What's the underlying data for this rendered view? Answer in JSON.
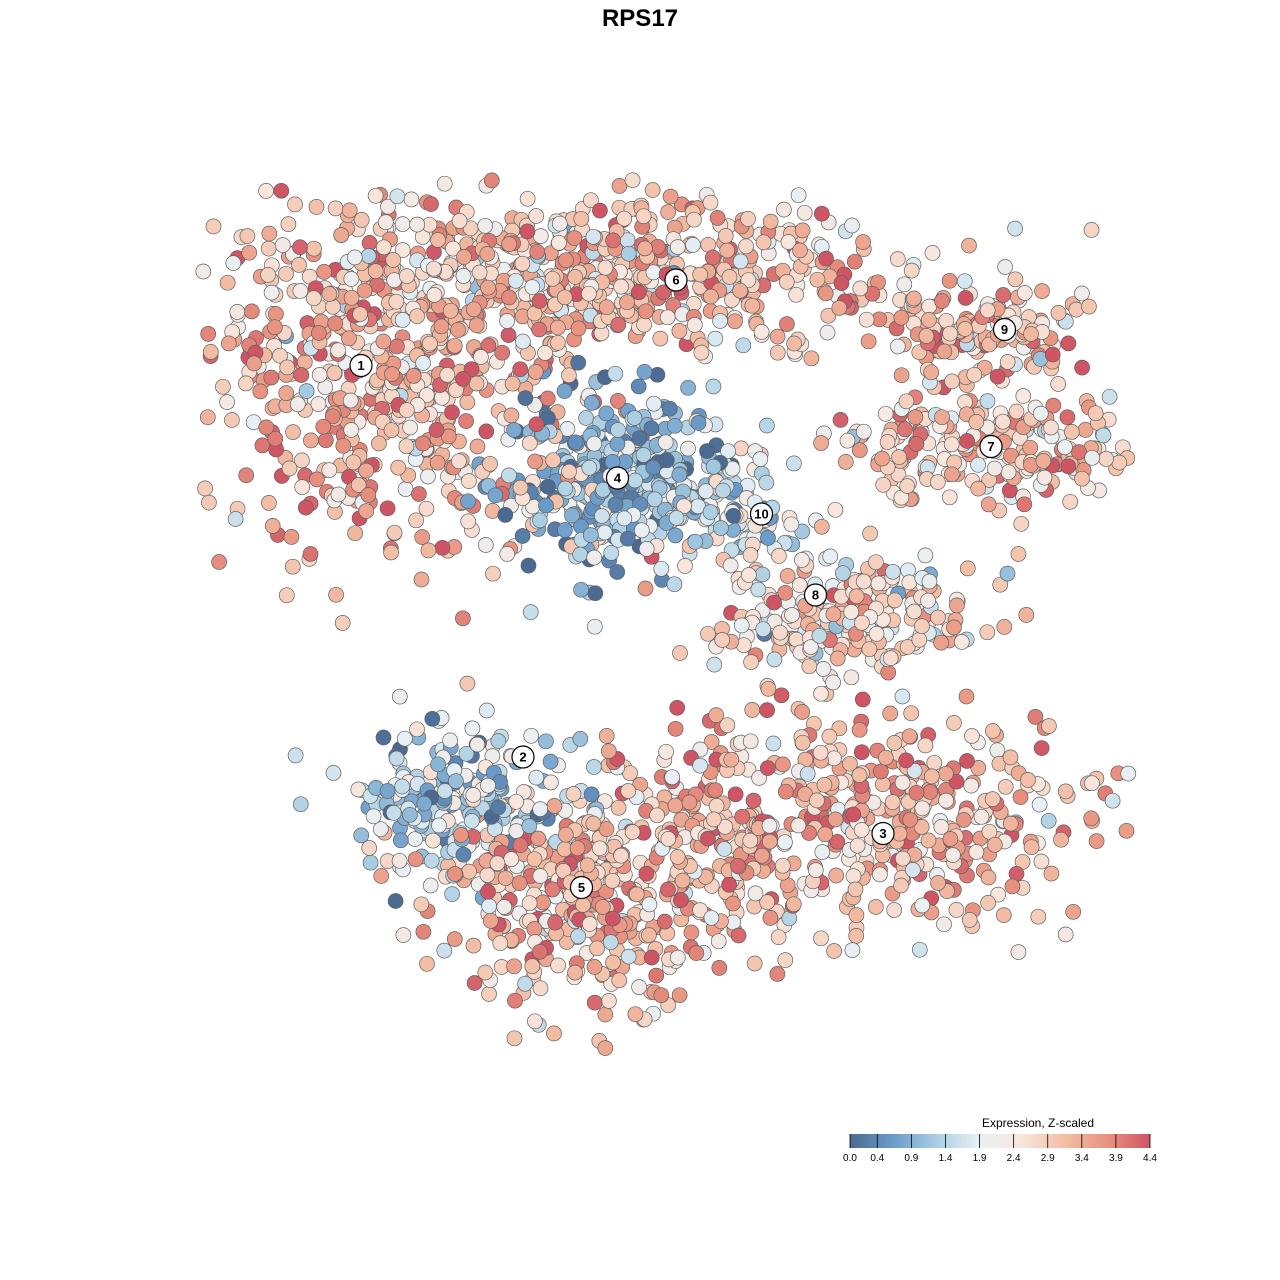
{
  "chart_data": {
    "type": "scatter",
    "title": "RPS17",
    "xlabel": "",
    "ylabel": "",
    "grid": false,
    "axes_visible": false,
    "legend": {
      "title": "Expression, Z-scaled",
      "placement": "bottom-right",
      "range": [
        0.0,
        4.4
      ],
      "ticks": [
        "0.0",
        "0.4",
        "0.9",
        "1.4",
        "1.9",
        "2.4",
        "2.9",
        "3.4",
        "3.9",
        "4.4"
      ],
      "colors": [
        "#4a6a92",
        "#6a9ccb",
        "#a8cde2",
        "#e8f0f5",
        "#f8e6dd",
        "#f3bfa6",
        "#e8927f",
        "#cf5565"
      ]
    },
    "point_style": {
      "edge_color": "#606060"
    },
    "clusters": [
      {
        "id": "1",
        "x": -6.2,
        "y": 6.1,
        "mean_expression": 3.2
      },
      {
        "id": "2",
        "x": -2.6,
        "y": -2.6,
        "mean_expression": 1.4
      },
      {
        "id": "3",
        "x": 5.4,
        "y": -4.3,
        "mean_expression": 3.2
      },
      {
        "id": "4",
        "x": -0.5,
        "y": 3.6,
        "mean_expression": 1.1
      },
      {
        "id": "5",
        "x": -1.3,
        "y": -5.5,
        "mean_expression": 3.2
      },
      {
        "id": "6",
        "x": 0.8,
        "y": 8.0,
        "mean_expression": 3.0
      },
      {
        "id": "7",
        "x": 7.8,
        "y": 4.3,
        "mean_expression": 3.0
      },
      {
        "id": "8",
        "x": 3.9,
        "y": 1.0,
        "mean_expression": 2.6
      },
      {
        "id": "9",
        "x": 8.1,
        "y": 6.9,
        "mean_expression": 3.2
      },
      {
        "id": "10",
        "x": 2.7,
        "y": 2.8,
        "mean_expression": 1.8
      }
    ]
  }
}
